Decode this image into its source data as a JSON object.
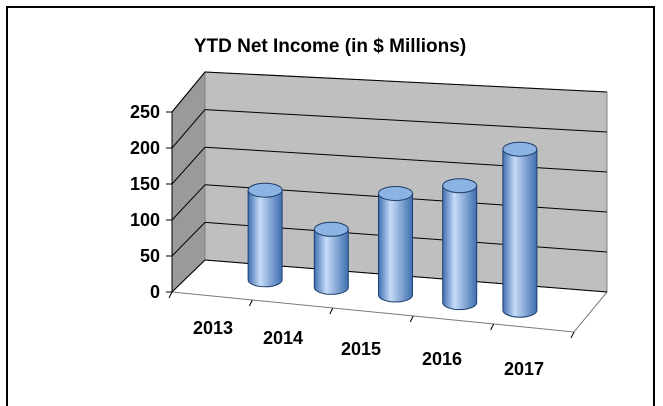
{
  "chart_data": {
    "type": "bar",
    "title": "YTD Net Income (in $ Millions)",
    "categories": [
      "2013",
      "2014",
      "2015",
      "2016",
      "2017"
    ],
    "values": [
      128,
      83,
      145,
      167,
      230
    ],
    "ylim": [
      0,
      250
    ],
    "yticks": [
      "0",
      "50",
      "100",
      "150",
      "200",
      "250"
    ],
    "grid": true,
    "legend": "none",
    "bar_shape": "cylinder",
    "colors": {
      "bar_light": "#c6dbf7",
      "bar_mid": "#8cb4e2",
      "bar_dark": "#3f6fb0",
      "back_wall": "#bfbfbf",
      "side_wall": "#9a9a9a",
      "floor": "#ffffff"
    }
  }
}
